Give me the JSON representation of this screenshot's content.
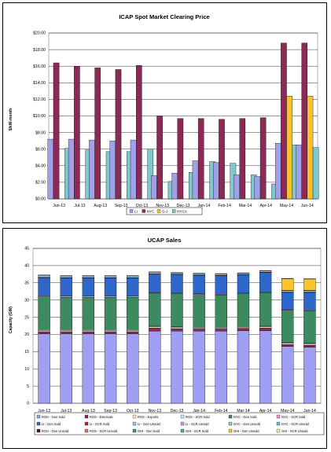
{
  "chart_data": [
    {
      "type": "bar",
      "title": "ICAP Spot Market Clearing Price",
      "xlabel": "",
      "ylabel": "$/kW-month",
      "ylim": [
        0,
        20
      ],
      "ytick_labels": [
        "$0.00",
        "$2.00",
        "$4.00",
        "$6.00",
        "$8.00",
        "$10.00",
        "$12.00",
        "$14.00",
        "$16.00",
        "$18.00",
        "$20.00"
      ],
      "categories": [
        "Jun-13",
        "Jul-13",
        "Aug-13",
        "Sep-13",
        "Oct-13",
        "Nov-13",
        "Dec-13",
        "Jan-14",
        "Feb-14",
        "Mar-14",
        "Apr-14",
        "May-14",
        "Jun-14"
      ],
      "series": [
        {
          "name": "LI",
          "color": "#9fa0e6",
          "values": [
            7.2,
            7.2,
            7.1,
            7.0,
            7.1,
            2.8,
            3.1,
            4.6,
            4.4,
            2.9,
            2.7,
            6.7,
            6.5
          ]
        },
        {
          "name": "NYC",
          "color": "#8b2a55",
          "values": [
            16.4,
            16.0,
            15.8,
            15.6,
            16.1,
            10.0,
            9.7,
            9.7,
            9.6,
            9.7,
            9.8,
            18.8,
            18.8
          ]
        },
        {
          "name": "G-J",
          "color": "#fac226",
          "values": [
            0,
            0,
            0,
            0,
            0,
            0,
            0,
            0,
            0,
            0,
            0,
            12.4,
            12.4
          ]
        },
        {
          "name": "NYCA",
          "color": "#7fc8cf",
          "values": [
            6.1,
            5.9,
            5.7,
            5.7,
            6.0,
            2.1,
            3.2,
            4.5,
            4.3,
            2.9,
            1.8,
            6.5,
            6.2
          ]
        }
      ],
      "legend_position": "bottom",
      "grid": true
    },
    {
      "type": "bar",
      "stacked": true,
      "title": "UCAP Sales",
      "xlabel": "",
      "ylabel": "Capacity (GW)",
      "ylim": [
        0,
        45
      ],
      "ytick_labels": [
        "0",
        "5",
        "10",
        "15",
        "20",
        "25",
        "30",
        "35",
        "40",
        "45"
      ],
      "categories": [
        "Jun-13",
        "Jul-13",
        "Aug-13",
        "Sep-13",
        "Oct-13",
        "Nov-13",
        "Dec-13",
        "Jan-14",
        "Feb-14",
        "Mar-14",
        "Apr-14",
        "May-14",
        "Jun-14"
      ],
      "series": [
        {
          "name": "ROS - Gen Sold",
          "color": "#9e9ef2",
          "values": [
            20.2,
            20.2,
            20.2,
            20.2,
            20.2,
            21.0,
            21.0,
            21.0,
            21.0,
            21.1,
            21.1,
            16.5,
            16.3
          ]
        },
        {
          "name": "ROS - Externals",
          "color": "#8a2c57",
          "values": [
            0.6,
            0.6,
            0.6,
            0.6,
            0.6,
            0.9,
            0.7,
            0.6,
            0.6,
            0.7,
            0.8,
            0.6,
            0.6
          ]
        },
        {
          "name": "ROS - Exports",
          "color": "#f2eec8",
          "values": [
            0.3,
            0.3,
            0.3,
            0.3,
            0.3,
            0.3,
            0.3,
            0.3,
            0.3,
            0.3,
            0.3,
            0.3,
            0.3
          ]
        },
        {
          "name": "ROS - SCR Sold",
          "color": "#cfeaee",
          "values": [
            0.3,
            0.3,
            0.3,
            0.3,
            0.3,
            0.2,
            0.2,
            0.2,
            0.2,
            0.2,
            0.2,
            0.2,
            0.2
          ]
        },
        {
          "name": "NYC - Gen Sold",
          "color": "#3d8a60",
          "values": [
            9.5,
            9.4,
            9.4,
            9.4,
            9.4,
            9.6,
            9.7,
            9.5,
            9.4,
            9.5,
            9.8,
            9.4,
            9.5
          ]
        },
        {
          "name": "NYC - SCR Sold",
          "color": "#e29ec8",
          "values": [
            0.3,
            0.3,
            0.3,
            0.3,
            0.3,
            0.2,
            0.2,
            0.2,
            0.2,
            0.2,
            0.2,
            0.2,
            0.2
          ]
        },
        {
          "name": "LI - Gen Sold",
          "color": "#2f66c9",
          "values": [
            5.3,
            5.3,
            5.3,
            5.3,
            5.3,
            5.3,
            5.3,
            5.4,
            5.4,
            5.3,
            5.6,
            5.0,
            5.1
          ]
        },
        {
          "name": "LI - SCR Sold",
          "color": "#ba2a38",
          "values": [
            0.1,
            0.1,
            0.1,
            0.1,
            0.1,
            0.1,
            0.1,
            0.1,
            0.1,
            0.1,
            0.1,
            0.1,
            0.1
          ]
        },
        {
          "name": "LI - Gen Unsold",
          "color": "#9cc6e0",
          "values": [
            0.6,
            0.5,
            0.5,
            0.5,
            0.5,
            0.5,
            0.4,
            0.4,
            0.4,
            0.4,
            0.4,
            0.4,
            0.4
          ]
        },
        {
          "name": "LI - SCR Unsold",
          "color": "#c89ee0",
          "values": [
            0.1,
            0.1,
            0.1,
            0.1,
            0.1,
            0.1,
            0.1,
            0.1,
            0.1,
            0.1,
            0.1,
            0.1,
            0.1
          ]
        },
        {
          "name": "NYC - Gen Unsold",
          "color": "#8fc8d8",
          "values": [
            0,
            0,
            0,
            0,
            0,
            0,
            0,
            0,
            0,
            0,
            0,
            0,
            0
          ]
        },
        {
          "name": "NYC - SCR Unsold",
          "color": "#5ec2c2",
          "values": [
            0,
            0,
            0,
            0,
            0,
            0,
            0,
            0,
            0,
            0,
            0,
            0,
            0
          ]
        },
        {
          "name": "ROS - Gen Unsold",
          "color": "#4c1a28",
          "values": [
            0,
            0,
            0,
            0,
            0,
            0,
            0,
            0,
            0,
            0,
            0,
            0,
            0
          ]
        },
        {
          "name": "ROS - SCR Unsold",
          "color": "#d77a6a",
          "values": [
            0,
            0,
            0,
            0,
            0,
            0,
            0,
            0,
            0,
            0,
            0,
            0,
            0
          ]
        },
        {
          "name": "GHI - Gen Sold",
          "color": "#2aa86e",
          "values": [
            0,
            0,
            0,
            0,
            0,
            0,
            0,
            0,
            0,
            0,
            0,
            0,
            0
          ]
        },
        {
          "name": "GHI - SCR Sold",
          "color": "#56b088",
          "values": [
            0,
            0,
            0,
            0,
            0,
            0,
            0,
            0,
            0,
            0,
            0,
            0,
            0
          ]
        },
        {
          "name": "GHI - Gen Unsold",
          "color": "#fac42a",
          "values": [
            0,
            0,
            0,
            0,
            0,
            0,
            0,
            0,
            0,
            0,
            0,
            3.4,
            3.3
          ]
        },
        {
          "name": "GHI - SCR Unsold",
          "color": "#f6e6a0",
          "values": [
            0,
            0,
            0,
            0,
            0,
            0,
            0,
            0,
            0,
            0,
            0,
            0.1,
            0.1
          ]
        }
      ],
      "legend_position": "bottom",
      "grid": true
    }
  ]
}
